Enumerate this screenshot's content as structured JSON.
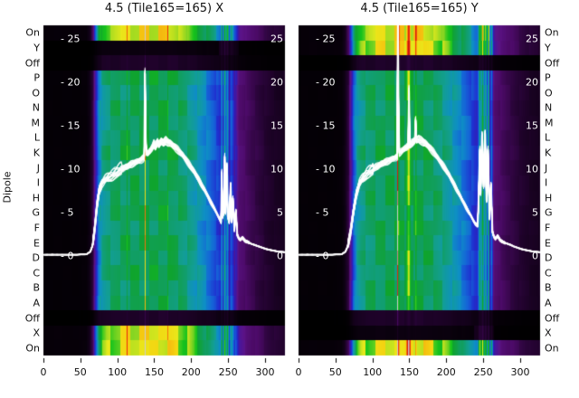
{
  "figure": {
    "titles": {
      "left": "4.5 (Tile165=165) X",
      "right": "4.5 (Tile165=165) Y"
    },
    "y_axis_label": "Dipole"
  },
  "row_labels": [
    "On",
    "Y",
    "Off",
    "P",
    "O",
    "N",
    "M",
    "L",
    "K",
    "J",
    "I",
    "H",
    "G",
    "F",
    "E",
    "D",
    "C",
    "B",
    "A",
    "Off",
    "X",
    "On"
  ],
  "x_tick_labels": [
    "0",
    "50",
    "100",
    "150",
    "200",
    "250",
    "300"
  ],
  "x_tick_values": [
    0,
    50,
    100,
    150,
    200,
    250,
    300
  ],
  "y_tick_items": [
    {
      "value": 0,
      "left_label": "- 0",
      "right_label": "0"
    },
    {
      "value": 5,
      "left_label": "- 5",
      "right_label": "5"
    },
    {
      "value": 10,
      "left_label": "- 10",
      "right_label": "10"
    },
    {
      "value": 15,
      "left_label": "- 15",
      "right_label": "15"
    },
    {
      "value": 20,
      "left_label": "- 20",
      "right_label": "20"
    },
    {
      "value": 25,
      "left_label": "- 25",
      "right_label": "25"
    }
  ],
  "colors": {
    "background": "#ffffff",
    "text": "#111111",
    "inner_tick_text": "#ffffff",
    "line": "#ffffff",
    "tick_mark": "#000000",
    "colormap_stops": [
      [
        0.0,
        "#000000"
      ],
      [
        0.04,
        "#1e0229"
      ],
      [
        0.09,
        "#4b0a66"
      ],
      [
        0.14,
        "#5c1387"
      ],
      [
        0.19,
        "#3519b0"
      ],
      [
        0.24,
        "#1f2fd0"
      ],
      [
        0.3,
        "#1565d8"
      ],
      [
        0.36,
        "#0e8fc5"
      ],
      [
        0.42,
        "#129e95"
      ],
      [
        0.48,
        "#119e63"
      ],
      [
        0.54,
        "#0fa32e"
      ],
      [
        0.62,
        "#16c31c"
      ],
      [
        0.66,
        "#8ed622"
      ],
      [
        0.71,
        "#e8ea1c"
      ],
      [
        0.76,
        "#f4d411"
      ],
      [
        0.81,
        "#f79b0c"
      ],
      [
        0.87,
        "#ee2a0c"
      ],
      [
        0.94,
        "#c80f0f"
      ],
      [
        1.0,
        "#cccccc"
      ]
    ]
  },
  "chart_data": [
    {
      "type": "heatmap",
      "title": "4.5 (Tile165=165) X",
      "x_range": [
        0,
        326
      ],
      "value_range_db": [
        0,
        27
      ],
      "value_ticks": [
        0,
        5,
        10,
        15,
        20,
        25
      ],
      "x_ticks": [
        0,
        50,
        100,
        150,
        200,
        250,
        300
      ],
      "rows": [
        "On",
        "Y",
        "Off",
        "P",
        "O",
        "N",
        "M",
        "L",
        "K",
        "J",
        "I",
        "H",
        "G",
        "F",
        "E",
        "D",
        "C",
        "B",
        "A",
        "Off",
        "X",
        "On"
      ],
      "row_gains": [
        1.45,
        0.03,
        0.08,
        1.04,
        0.96,
        1.02,
        0.98,
        1.0,
        1.05,
        0.97,
        1.01,
        0.99,
        1.03,
        0.96,
        1.02,
        0.98,
        1.04,
        0.97,
        1.0,
        0.08,
        1.45,
        1.45
      ],
      "overlay_lines": {
        "count": 16,
        "color": "#ffffff"
      },
      "heat_points": [
        [
          0,
          0.15
        ],
        [
          45,
          0.15
        ],
        [
          58,
          0.2
        ],
        [
          63,
          0.6
        ],
        [
          66,
          1.5
        ],
        [
          69,
          4.0
        ],
        [
          72,
          7.0
        ],
        [
          76,
          10.0
        ],
        [
          80,
          11.5
        ],
        [
          86,
          12.2
        ],
        [
          92,
          12.6
        ],
        [
          100,
          12.9
        ],
        [
          110,
          13.1
        ],
        [
          112,
          13.2
        ],
        [
          113,
          15.2
        ],
        [
          114,
          13.3
        ],
        [
          120,
          13.3
        ],
        [
          130,
          13.4
        ],
        [
          136,
          13.4
        ],
        [
          137,
          21.0
        ],
        [
          138,
          13.5
        ],
        [
          150,
          13.6
        ],
        [
          160,
          13.7
        ],
        [
          167,
          13.5
        ],
        [
          168,
          15.3
        ],
        [
          169,
          13.5
        ],
        [
          170,
          13.5
        ],
        [
          178,
          13.2
        ],
        [
          186,
          12.7
        ],
        [
          194,
          12.1
        ],
        [
          202,
          11.3
        ],
        [
          210,
          10.4
        ],
        [
          218,
          9.4
        ],
        [
          226,
          8.3
        ],
        [
          234,
          7.2
        ],
        [
          239,
          6.4
        ],
        [
          241,
          9.8
        ],
        [
          243,
          6.0
        ],
        [
          245,
          11.4
        ],
        [
          247,
          5.6
        ],
        [
          249,
          10.4
        ],
        [
          251,
          5.0
        ],
        [
          253,
          8.4
        ],
        [
          256,
          6.6
        ],
        [
          258,
          4.4
        ],
        [
          260,
          5.2
        ],
        [
          263,
          3.4
        ],
        [
          266,
          2.8
        ],
        [
          270,
          2.6
        ],
        [
          276,
          2.2
        ],
        [
          282,
          1.9
        ],
        [
          290,
          1.6
        ],
        [
          298,
          1.3
        ],
        [
          306,
          1.1
        ],
        [
          316,
          0.9
        ],
        [
          326,
          0.8
        ]
      ],
      "line_points": [
        [
          0,
          0.15
        ],
        [
          45,
          0.15
        ],
        [
          58,
          0.2
        ],
        [
          63,
          0.5
        ],
        [
          66,
          1.2
        ],
        [
          69,
          3.2
        ],
        [
          72,
          5.8
        ],
        [
          75,
          7.5
        ],
        [
          79,
          8.4
        ],
        [
          83,
          8.8
        ],
        [
          88,
          9.1
        ],
        [
          93,
          9.3
        ],
        [
          98,
          9.6
        ],
        [
          103,
          9.9
        ],
        [
          108,
          10.1
        ],
        [
          113,
          10.3
        ],
        [
          118,
          10.55
        ],
        [
          123,
          10.75
        ],
        [
          128,
          10.95
        ],
        [
          132,
          11.1
        ],
        [
          135,
          11.3
        ],
        [
          136,
          11.5
        ],
        [
          137,
          21.0
        ],
        [
          138,
          13.5
        ],
        [
          139,
          11.9
        ],
        [
          141,
          11.8
        ],
        [
          144,
          12.1
        ],
        [
          147,
          12.5
        ],
        [
          149,
          12.9
        ],
        [
          151,
          12.6
        ],
        [
          154,
          13.1
        ],
        [
          156,
          12.8
        ],
        [
          159,
          13.2
        ],
        [
          162,
          13.0
        ],
        [
          165,
          13.3
        ],
        [
          168,
          13.1
        ],
        [
          171,
          13.0
        ],
        [
          174,
          12.8
        ],
        [
          177,
          12.6
        ],
        [
          181,
          12.3
        ],
        [
          185,
          11.9
        ],
        [
          189,
          11.5
        ],
        [
          193,
          11.0
        ],
        [
          197,
          10.5
        ],
        [
          201,
          10.0
        ],
        [
          205,
          9.5
        ],
        [
          209,
          8.9
        ],
        [
          213,
          8.3
        ],
        [
          217,
          7.7
        ],
        [
          221,
          7.1
        ],
        [
          225,
          6.4
        ],
        [
          229,
          5.8
        ],
        [
          233,
          5.1
        ],
        [
          236,
          4.6
        ],
        [
          239,
          4.1
        ],
        [
          240,
          3.9
        ],
        [
          241,
          9.6
        ],
        [
          242,
          4.5
        ],
        [
          244,
          5.2
        ],
        [
          245,
          11.4
        ],
        [
          246,
          5.0
        ],
        [
          248,
          10.4
        ],
        [
          249,
          4.6
        ],
        [
          251,
          3.9
        ],
        [
          253,
          8.2
        ],
        [
          254,
          4.0
        ],
        [
          256,
          6.6
        ],
        [
          258,
          3.0
        ],
        [
          260,
          5.2
        ],
        [
          262,
          2.4
        ],
        [
          264,
          2.0
        ],
        [
          266,
          1.9
        ],
        [
          269,
          2.1
        ],
        [
          272,
          1.8
        ],
        [
          276,
          1.6
        ],
        [
          281,
          1.4
        ],
        [
          286,
          1.25
        ],
        [
          291,
          1.1
        ],
        [
          296,
          0.95
        ],
        [
          301,
          0.8
        ],
        [
          306,
          0.7
        ],
        [
          312,
          0.6
        ],
        [
          318,
          0.5
        ],
        [
          326,
          0.45
        ]
      ]
    },
    {
      "type": "heatmap",
      "title": "4.5 (Tile165=165) Y",
      "x_range": [
        0,
        326
      ],
      "value_range_db": [
        0,
        27
      ],
      "value_ticks": [
        0,
        5,
        10,
        15,
        20,
        25
      ],
      "x_ticks": [
        0,
        50,
        100,
        150,
        200,
        250,
        300
      ],
      "rows": [
        "On",
        "Y",
        "Off",
        "P",
        "O",
        "N",
        "M",
        "L",
        "K",
        "J",
        "I",
        "H",
        "G",
        "F",
        "E",
        "D",
        "C",
        "B",
        "A",
        "Off",
        "X",
        "On"
      ],
      "row_gains": [
        1.45,
        1.45,
        0.08,
        0.99,
        1.03,
        0.97,
        1.02,
        0.98,
        1.04,
        0.96,
        1.0,
        1.02,
        0.97,
        1.03,
        0.98,
        1.01,
        0.96,
        1.02,
        1.0,
        0.08,
        0.03,
        1.45
      ],
      "overlay_lines": {
        "count": 16,
        "color": "#ffffff"
      },
      "heat_points": [
        [
          0,
          0.15
        ],
        [
          45,
          0.15
        ],
        [
          58,
          0.2
        ],
        [
          63,
          0.6
        ],
        [
          67,
          1.6
        ],
        [
          70,
          4.0
        ],
        [
          74,
          7.5
        ],
        [
          78,
          10.5
        ],
        [
          83,
          11.8
        ],
        [
          89,
          12.4
        ],
        [
          96,
          12.8
        ],
        [
          105,
          13.1
        ],
        [
          115,
          13.3
        ],
        [
          125,
          13.4
        ],
        [
          133,
          13.5
        ],
        [
          134,
          26.8
        ],
        [
          135,
          16.0
        ],
        [
          137,
          13.5
        ],
        [
          145,
          13.6
        ],
        [
          149,
          19.5
        ],
        [
          152,
          13.6
        ],
        [
          157,
          13.7
        ],
        [
          158,
          16.0
        ],
        [
          160,
          13.7
        ],
        [
          170,
          13.5
        ],
        [
          178,
          13.2
        ],
        [
          186,
          12.7
        ],
        [
          194,
          12.1
        ],
        [
          202,
          11.3
        ],
        [
          210,
          10.4
        ],
        [
          218,
          9.4
        ],
        [
          226,
          8.3
        ],
        [
          233,
          7.3
        ],
        [
          238,
          6.5
        ],
        [
          241,
          6.2
        ],
        [
          243,
          7.5
        ],
        [
          245,
          12.2
        ],
        [
          247,
          8.2
        ],
        [
          249,
          13.9
        ],
        [
          251,
          9.0
        ],
        [
          253,
          14.1
        ],
        [
          255,
          7.4
        ],
        [
          257,
          12.2
        ],
        [
          259,
          5.4
        ],
        [
          261,
          8.2
        ],
        [
          263,
          3.6
        ],
        [
          266,
          2.9
        ],
        [
          270,
          2.6
        ],
        [
          276,
          2.2
        ],
        [
          282,
          1.9
        ],
        [
          290,
          1.6
        ],
        [
          298,
          1.3
        ],
        [
          306,
          1.1
        ],
        [
          316,
          0.9
        ],
        [
          326,
          0.8
        ]
      ],
      "line_points": [
        [
          0,
          0.15
        ],
        [
          45,
          0.15
        ],
        [
          58,
          0.2
        ],
        [
          63,
          0.5
        ],
        [
          66,
          1.1
        ],
        [
          70,
          2.8
        ],
        [
          74,
          5.2
        ],
        [
          78,
          7.2
        ],
        [
          82,
          8.4
        ],
        [
          87,
          9.0
        ],
        [
          92,
          9.5
        ],
        [
          97,
          9.8
        ],
        [
          102,
          10.1
        ],
        [
          107,
          10.35
        ],
        [
          112,
          10.6
        ],
        [
          117,
          10.8
        ],
        [
          122,
          11.0
        ],
        [
          127,
          11.2
        ],
        [
          131,
          11.35
        ],
        [
          133,
          11.5
        ],
        [
          134,
          26.8
        ],
        [
          135,
          16.0
        ],
        [
          136,
          11.9
        ],
        [
          138,
          12.0
        ],
        [
          141,
          12.2
        ],
        [
          144,
          12.4
        ],
        [
          147,
          12.6
        ],
        [
          148,
          12.7
        ],
        [
          149,
          19.0
        ],
        [
          150,
          12.8
        ],
        [
          153,
          13.0
        ],
        [
          156,
          13.2
        ],
        [
          157,
          13.3
        ],
        [
          158,
          15.6
        ],
        [
          159,
          13.35
        ],
        [
          162,
          13.45
        ],
        [
          165,
          13.3
        ],
        [
          168,
          13.15
        ],
        [
          171,
          13.0
        ],
        [
          175,
          12.7
        ],
        [
          179,
          12.3
        ],
        [
          183,
          11.9
        ],
        [
          187,
          11.4
        ],
        [
          191,
          10.9
        ],
        [
          195,
          10.4
        ],
        [
          199,
          9.9
        ],
        [
          204,
          9.2
        ],
        [
          209,
          8.4
        ],
        [
          214,
          7.6
        ],
        [
          219,
          6.8
        ],
        [
          224,
          6.0
        ],
        [
          229,
          5.2
        ],
        [
          233,
          4.6
        ],
        [
          236,
          4.1
        ],
        [
          239,
          3.7
        ],
        [
          242,
          3.5
        ],
        [
          243,
          5.8
        ],
        [
          245,
          12.2
        ],
        [
          246,
          7.2
        ],
        [
          248,
          13.9
        ],
        [
          250,
          8.0
        ],
        [
          252,
          14.1
        ],
        [
          254,
          6.4
        ],
        [
          256,
          12.2
        ],
        [
          258,
          4.4
        ],
        [
          260,
          8.2
        ],
        [
          262,
          2.8
        ],
        [
          264,
          2.2
        ],
        [
          266,
          2.0
        ],
        [
          269,
          2.3
        ],
        [
          272,
          1.9
        ],
        [
          276,
          1.6
        ],
        [
          281,
          1.45
        ],
        [
          286,
          1.3
        ],
        [
          291,
          1.1
        ],
        [
          296,
          0.95
        ],
        [
          301,
          0.8
        ],
        [
          306,
          0.7
        ],
        [
          312,
          0.6
        ],
        [
          318,
          0.5
        ],
        [
          326,
          0.45
        ]
      ]
    }
  ]
}
